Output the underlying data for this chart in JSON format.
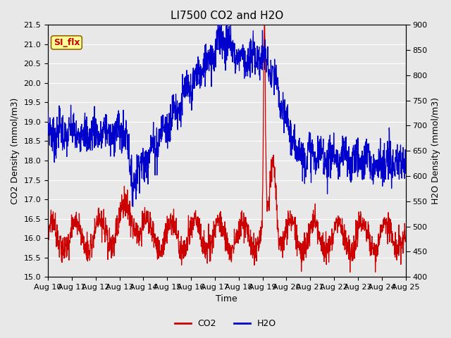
{
  "title": "LI7500 CO2 and H2O",
  "xlabel": "Time",
  "ylabel_left": "CO2 Density (mmol/m3)",
  "ylabel_right": "H2O Density (mmol/m3)",
  "xlim": [
    0,
    15
  ],
  "ylim_left": [
    15.0,
    21.5
  ],
  "ylim_right": [
    400,
    900
  ],
  "yticks_left": [
    15.0,
    15.5,
    16.0,
    16.5,
    17.0,
    17.5,
    18.0,
    18.5,
    19.0,
    19.5,
    20.0,
    20.5,
    21.0,
    21.5
  ],
  "yticks_right": [
    400,
    450,
    500,
    550,
    600,
    650,
    700,
    750,
    800,
    850,
    900
  ],
  "xtick_labels": [
    "Aug 10",
    "Aug 11",
    "Aug 12",
    "Aug 13",
    "Aug 14",
    "Aug 15",
    "Aug 16",
    "Aug 17",
    "Aug 18",
    "Aug 19",
    "Aug 20",
    "Aug 21",
    "Aug 22",
    "Aug 23",
    "Aug 24",
    "Aug 25"
  ],
  "co2_color": "#cc0000",
  "h2o_color": "#0000cc",
  "background_color": "#e8e8e8",
  "plot_bg_color": "#e8e8e8",
  "grid_color": "#ffffff",
  "annotation_text": "SI_flx",
  "annotation_bg": "#ffff99",
  "annotation_border": "#996600",
  "annotation_text_color": "#cc0000",
  "legend_co2": "CO2",
  "legend_h2o": "H2O",
  "title_fontsize": 11,
  "axis_label_fontsize": 9,
  "tick_fontsize": 8,
  "legend_fontsize": 9
}
